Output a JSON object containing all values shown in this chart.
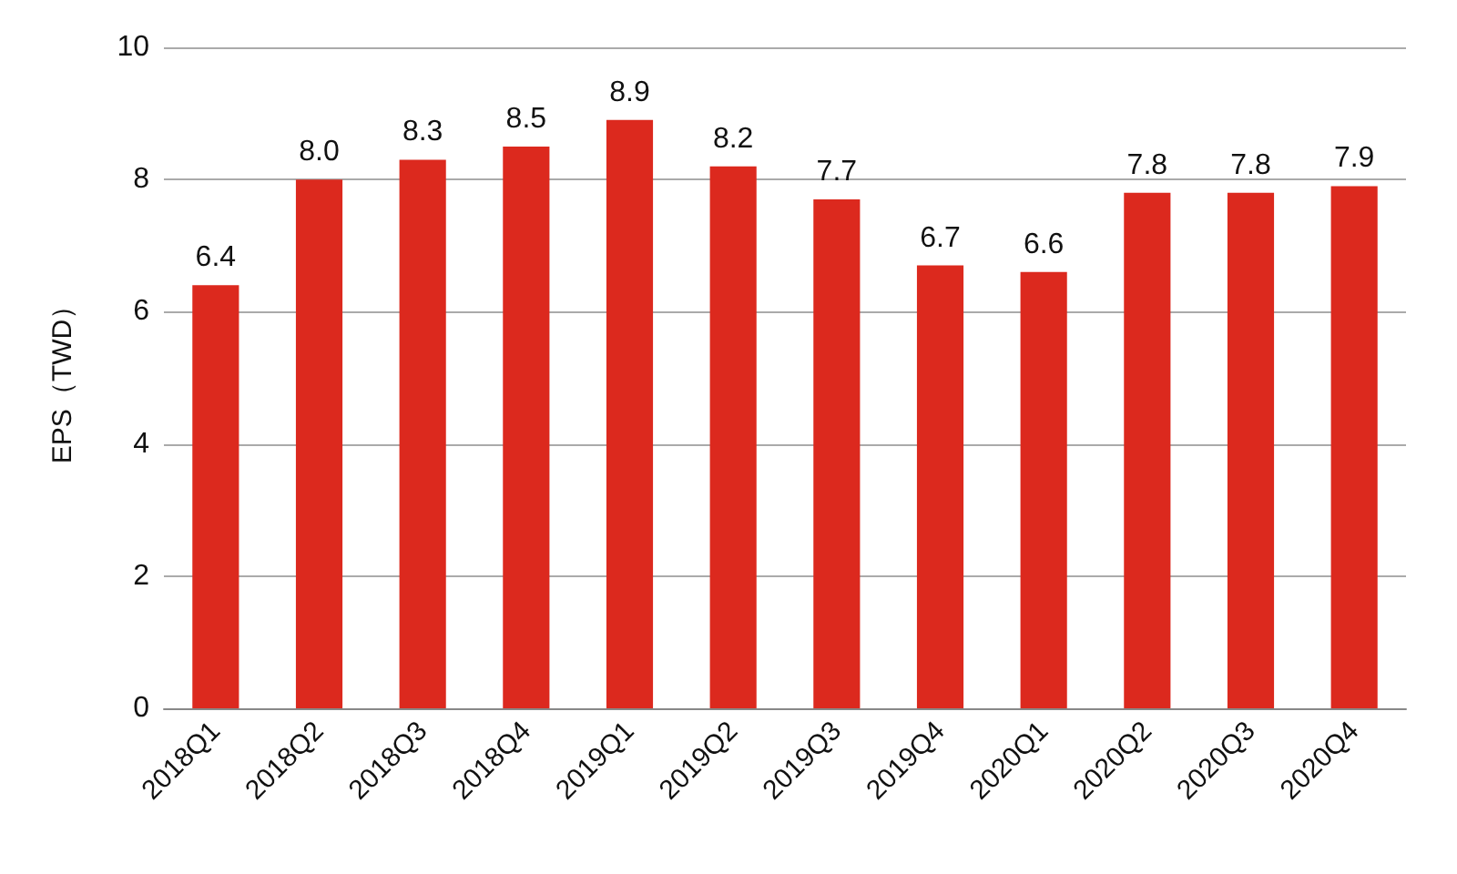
{
  "chart_data": {
    "type": "bar",
    "ylabel": "EPS（TWD）",
    "categories": [
      "2018Q1",
      "2018Q2",
      "2018Q3",
      "2018Q4",
      "2019Q1",
      "2019Q2",
      "2019Q3",
      "2019Q4",
      "2020Q1",
      "2020Q2",
      "2020Q3",
      "2020Q4"
    ],
    "values": [
      6.4,
      8.0,
      8.3,
      8.5,
      8.9,
      8.2,
      7.7,
      6.7,
      6.6,
      7.8,
      7.8,
      7.9
    ],
    "value_labels": [
      "6.4",
      "8.0",
      "8.3",
      "8.5",
      "8.9",
      "8.2",
      "7.7",
      "6.7",
      "6.6",
      "7.8",
      "7.8",
      "7.9"
    ],
    "color": "#dc291e",
    "ylim": [
      0,
      10
    ],
    "yticks": [
      0,
      2,
      4,
      6,
      8,
      10
    ],
    "grid": "y"
  }
}
